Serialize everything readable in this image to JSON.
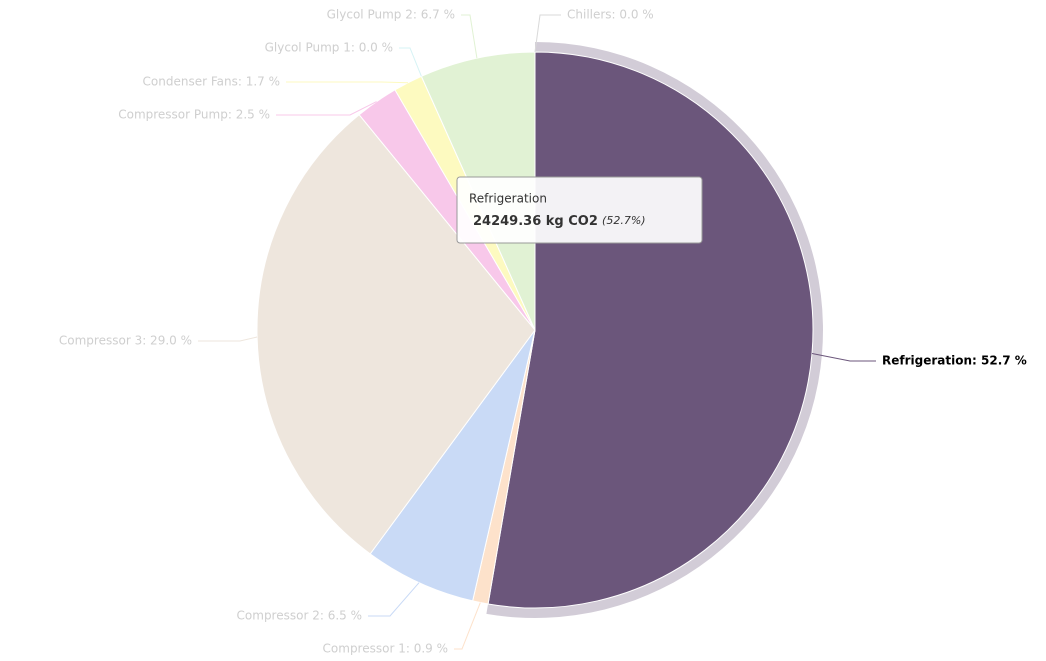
{
  "chart_data": {
    "type": "pie",
    "categories": [
      "Chillers",
      "Refrigeration",
      "Compressor 1",
      "Compressor 2",
      "Compressor 3",
      "Compressor Pump",
      "Condenser Fans",
      "Glycol Pump 1",
      "Glycol Pump 2"
    ],
    "values": [
      0.0,
      52.7,
      0.9,
      6.5,
      29.0,
      2.5,
      1.7,
      0.0,
      6.7
    ],
    "value_labels": [
      "Chillers: 0.0 %",
      "Refrigeration: 52.7 %",
      "Compressor 1: 0.9 %",
      "Compressor 2: 6.5 %",
      "Compressor 3: 29.0 %",
      "Compressor Pump: 2.5 %",
      "Condenser Fans: 1.7 %",
      "Glycol Pump 1: 0.0 %",
      "Glycol Pump 2: 6.7 %"
    ],
    "colors": [
      "#d9d9d9",
      "#6b567b",
      "#fde2cb",
      "#c9daf6",
      "#eee6dd",
      "#f8c8ea",
      "#fdfac0",
      "#d6f3f5",
      "#e1f2d4"
    ],
    "highlighted": 1,
    "tooltip": {
      "title": "Refrigeration",
      "text": "24249.36 kg CO2",
      "percent": "(52.7%)"
    }
  }
}
